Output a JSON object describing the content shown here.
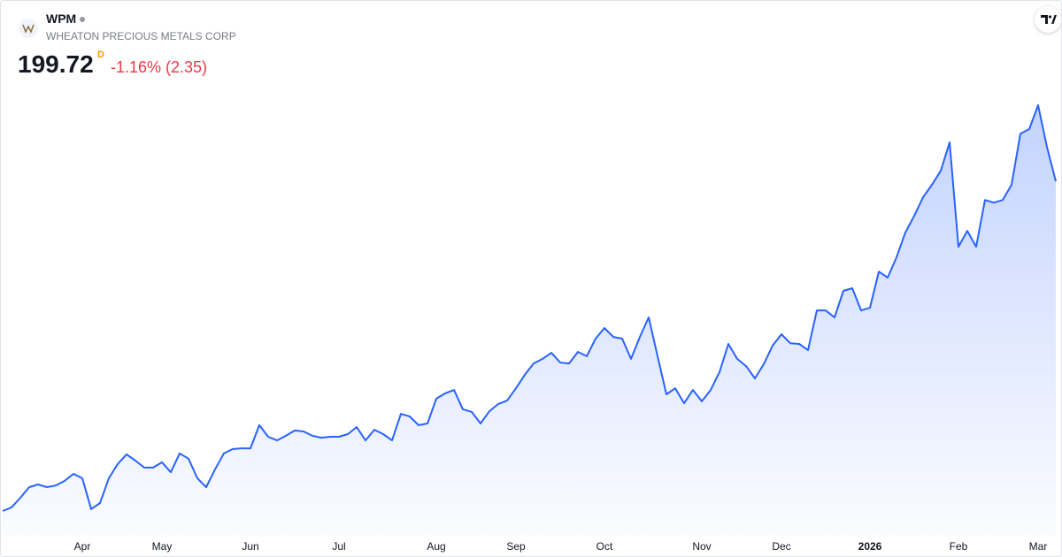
{
  "chart_data": {
    "type": "area",
    "symbol": "WPM",
    "name": "WHEATON PRECIOUS METALS CORP",
    "price": "199.72",
    "interval": "D",
    "change": "-1.16% (2.35)",
    "color": "#2962ff",
    "categories": [
      null,
      null,
      null,
      null,
      null,
      null,
      null,
      null,
      null,
      "Apr",
      null,
      null,
      null,
      null,
      null,
      null,
      null,
      null,
      "May",
      null,
      null,
      null,
      null,
      null,
      null,
      null,
      null,
      null,
      "Jun",
      null,
      null,
      null,
      null,
      null,
      null,
      null,
      null,
      null,
      "Jul",
      null,
      null,
      null,
      null,
      null,
      null,
      null,
      null,
      null,
      null,
      "Aug",
      null,
      null,
      null,
      null,
      null,
      null,
      null,
      null,
      "Sep",
      null,
      null,
      null,
      null,
      null,
      null,
      null,
      null,
      null,
      "Oct",
      null,
      null,
      null,
      null,
      null,
      null,
      null,
      null,
      null,
      null,
      "Nov",
      null,
      null,
      null,
      null,
      null,
      null,
      null,
      null,
      "Dec",
      null,
      null,
      null,
      null,
      null,
      null,
      null,
      null,
      null,
      "2026",
      null,
      null,
      null,
      null,
      null,
      null,
      null,
      null,
      null,
      "Feb",
      null,
      null,
      null,
      null,
      null,
      null,
      null,
      null,
      "Mar",
      null,
      null
    ],
    "values": [
      63.0,
      64.5,
      68.5,
      72.9,
      74.0,
      72.9,
      73.6,
      75.5,
      78.4,
      76.6,
      63.8,
      66.3,
      76.6,
      82.5,
      86.5,
      83.9,
      81.0,
      81.0,
      83.2,
      79.1,
      86.9,
      84.7,
      76.6,
      72.9,
      80.3,
      86.9,
      88.7,
      89.0,
      89.0,
      98.6,
      93.8,
      92.3,
      94.2,
      96.4,
      96.0,
      94.2,
      93.4,
      93.8,
      93.8,
      94.9,
      97.8,
      92.3,
      96.7,
      94.9,
      92.3,
      103.3,
      102.2,
      98.6,
      99.3,
      109.6,
      111.8,
      113.2,
      105.2,
      104.1,
      99.3,
      104.4,
      107.4,
      108.8,
      113.9,
      119.5,
      124.2,
      126.1,
      128.6,
      124.6,
      124.2,
      129.0,
      127.2,
      134.5,
      138.9,
      135.2,
      134.5,
      126.1,
      135.2,
      143.3,
      127.2,
      111.4,
      113.9,
      107.7,
      113.2,
      108.5,
      113.2,
      120.6,
      132.3,
      126.1,
      123.1,
      118.0,
      123.9,
      131.6,
      136.3,
      132.6,
      132.3,
      129.7,
      146.2,
      146.2,
      143.3,
      154.3,
      155.4,
      146.2,
      147.3,
      162.3,
      159.8,
      168.2,
      178.5,
      185.4,
      193.1,
      198.3,
      204.1,
      215.9,
      172.6,
      179.2,
      172.6,
      192.0,
      190.9,
      192.0,
      198.3,
      219.5,
      221.4,
      231.3,
      214.0,
      199.72
    ]
  }
}
